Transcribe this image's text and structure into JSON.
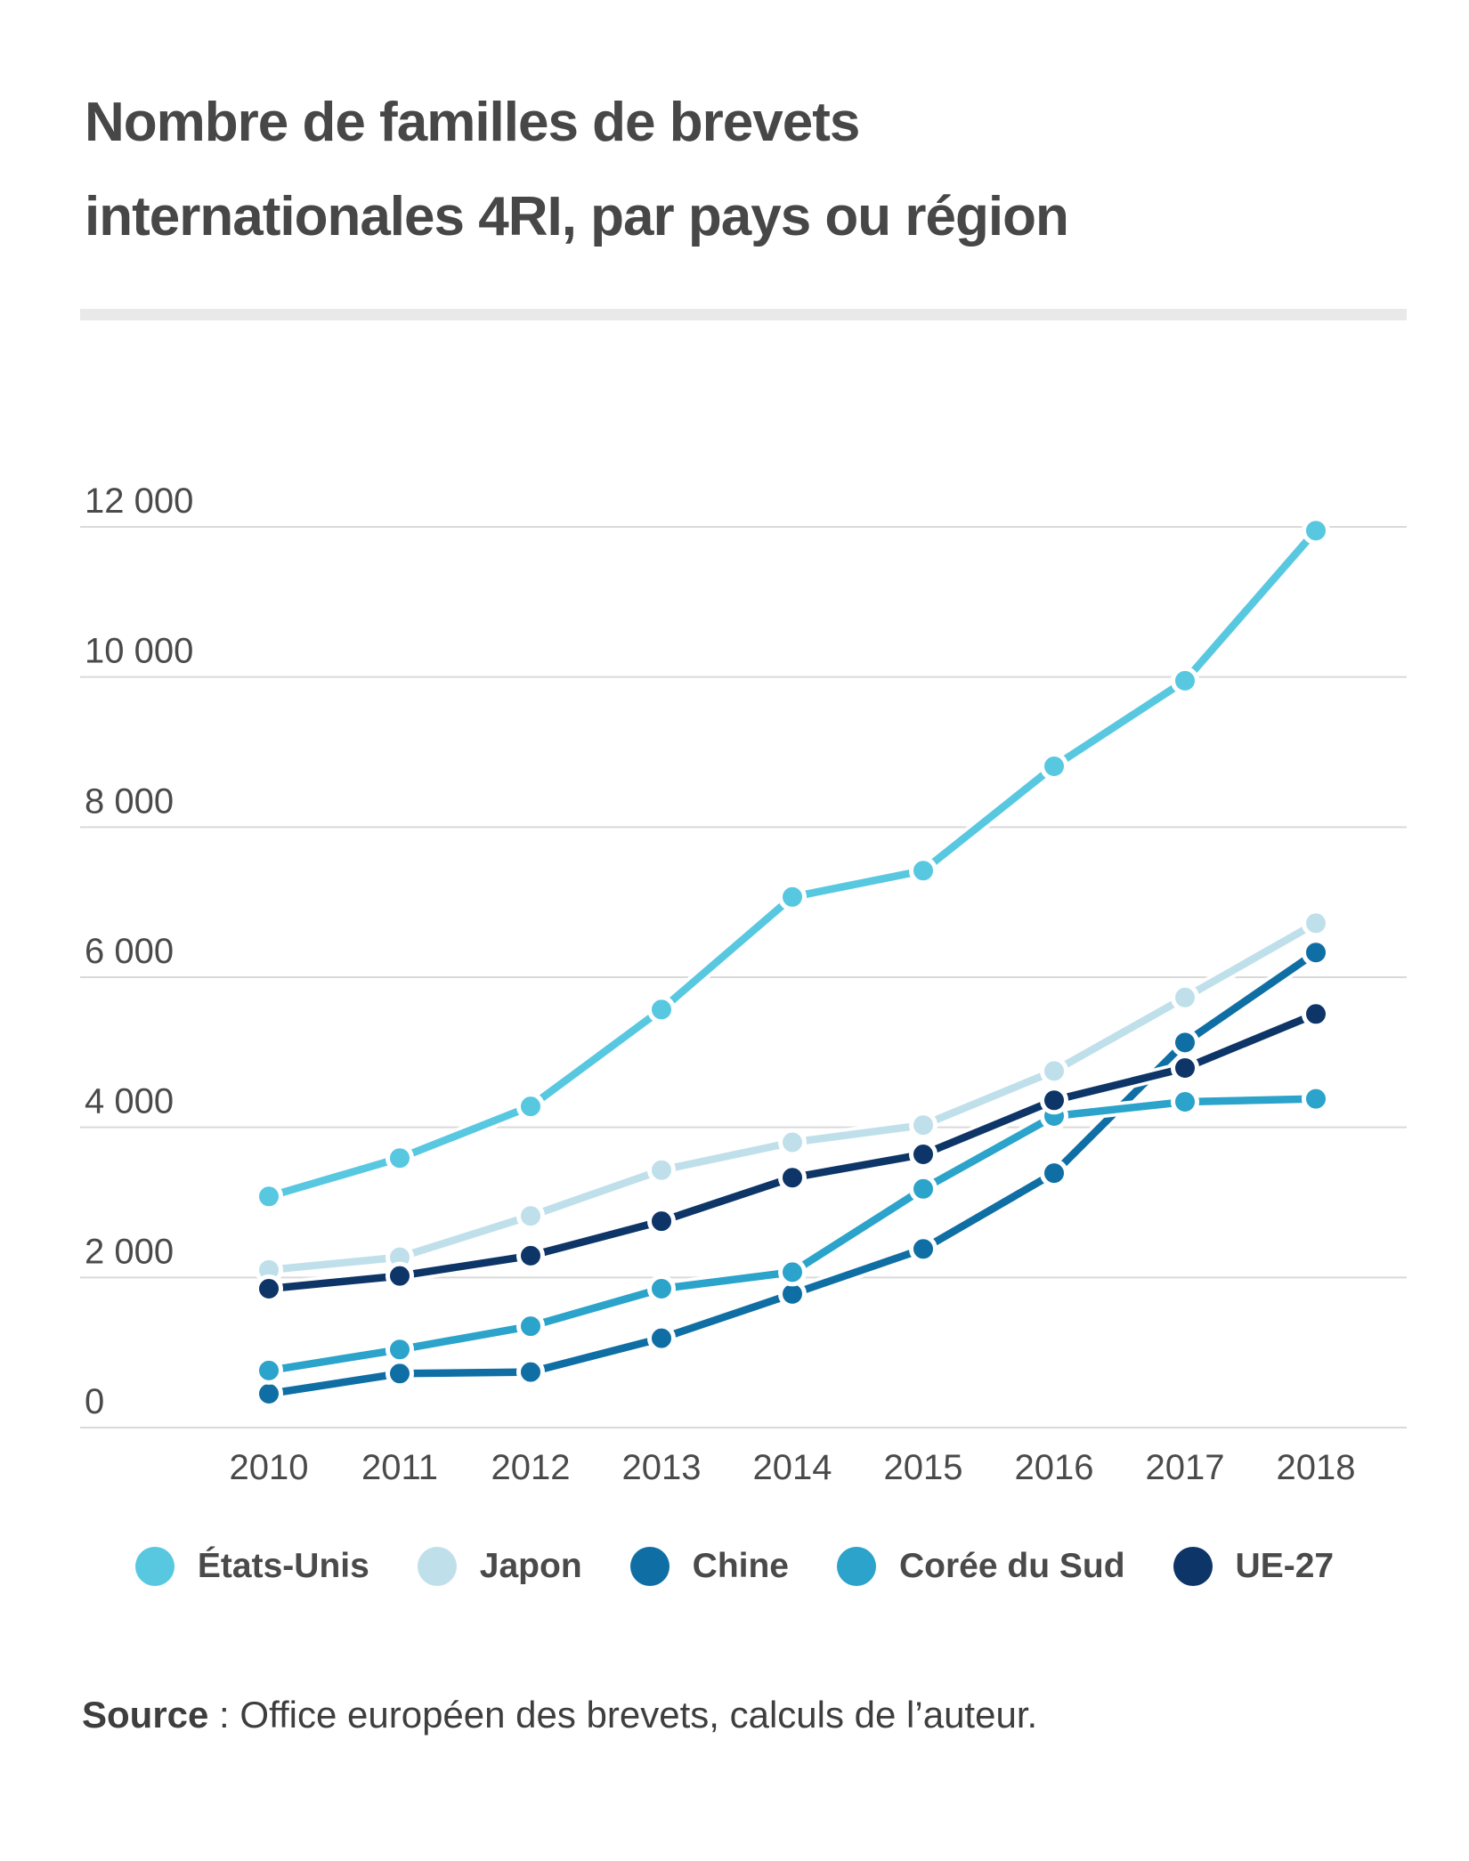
{
  "header": {
    "title_line1": "Nombre de familles de brevets",
    "title_line2": "internationales 4RI, par pays ou région"
  },
  "source": {
    "label": "Source",
    "text": " : Office européen des brevets, calculs de l’auteur."
  },
  "chart_data": {
    "type": "line",
    "x": [
      2010,
      2011,
      2012,
      2013,
      2014,
      2015,
      2016,
      2017,
      2018
    ],
    "series": [
      {
        "name": "États-Unis",
        "color": "#58C8E1",
        "values": [
          3080,
          3590,
          4280,
          5570,
          7070,
          7420,
          8810,
          9950,
          11950
        ]
      },
      {
        "name": "Japon",
        "color": "#BFE0EB",
        "values": [
          2100,
          2270,
          2820,
          3430,
          3800,
          4030,
          4750,
          5730,
          6720
        ]
      },
      {
        "name": "Chine",
        "color": "#0F6FA4",
        "values": [
          450,
          720,
          740,
          1190,
          1780,
          2380,
          3390,
          5130,
          6330
        ]
      },
      {
        "name": "Corée du Sud",
        "color": "#2BA3CA",
        "values": [
          760,
          1040,
          1350,
          1850,
          2070,
          3180,
          4150,
          4340,
          4380
        ]
      },
      {
        "name": "UE-27",
        "color": "#0D3567",
        "values": [
          1850,
          2020,
          2290,
          2750,
          3330,
          3640,
          4360,
          4790,
          5510
        ]
      }
    ],
    "title": "",
    "xlabel": "",
    "ylabel": "",
    "ylim": [
      0,
      12000
    ],
    "yticks": [
      0,
      2000,
      4000,
      6000,
      8000,
      10000,
      12000
    ],
    "ytick_labels": [
      "0",
      "2 000",
      "4 000",
      "6 000",
      "8 000",
      "10 000",
      "12 000"
    ],
    "grid": true,
    "legend_position": "bottom",
    "grid_color": "#d9d9d9",
    "background": "#ffffff"
  }
}
